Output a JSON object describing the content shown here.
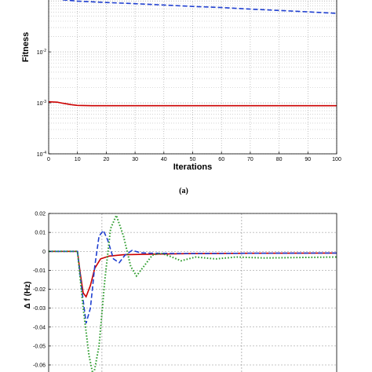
{
  "chart_data": [
    {
      "type": "line",
      "panel_label": "(a)",
      "title": "",
      "xlabel": "Iterations",
      "ylabel": "Fitness",
      "y_scale": "log",
      "xlim": [
        0,
        100
      ],
      "ylim": [
        0.0001,
        0.12
      ],
      "x_ticks": [
        0,
        10,
        20,
        30,
        40,
        50,
        60,
        70,
        80,
        90,
        100
      ],
      "y_ticks": [
        {
          "value": 0.01,
          "base": "10",
          "exp": "-2"
        },
        {
          "value": 0.001,
          "base": "10",
          "exp": "-3"
        },
        {
          "value": 0.0001,
          "base": "10",
          "exp": "-4"
        }
      ],
      "grid": true,
      "series": [
        {
          "style": "dashed",
          "color": "#1f3fd0",
          "points": [
            [
              0,
              0.115
            ],
            [
              5,
              0.105
            ],
            [
              10,
              0.099
            ],
            [
              20,
              0.093
            ],
            [
              30,
              0.088
            ],
            [
              40,
              0.083
            ],
            [
              50,
              0.078
            ],
            [
              60,
              0.074
            ],
            [
              70,
              0.069
            ],
            [
              80,
              0.065
            ],
            [
              90,
              0.061
            ],
            [
              100,
              0.057
            ]
          ]
        },
        {
          "style": "solid",
          "color": "#cc0000",
          "points": [
            [
              0,
              0.00105
            ],
            [
              3,
              0.00103
            ],
            [
              5,
              0.00098
            ],
            [
              8,
              0.00092
            ],
            [
              10,
              0.00089
            ],
            [
              15,
              0.00088
            ],
            [
              30,
              0.00088
            ],
            [
              60,
              0.00088
            ],
            [
              100,
              0.00088
            ]
          ]
        }
      ]
    },
    {
      "type": "line",
      "title": "",
      "xlabel": "",
      "ylabel": "Δ f (Hz)",
      "xlim": [
        0,
        10
      ],
      "ylim": [
        -0.066,
        0.02
      ],
      "y_ticks": [
        0.02,
        0.01,
        0,
        -0.01,
        -0.02,
        -0.03,
        -0.04,
        -0.05,
        -0.06
      ],
      "y_tick_labels": [
        "0.02",
        "0.01",
        "0",
        "-0.01",
        "-0.02",
        "-0.03",
        "-0.04",
        "-0.05",
        "-0.06"
      ],
      "grid": true,
      "series": [
        {
          "style": "solid",
          "color": "#cc0000",
          "points": [
            [
              0,
              0
            ],
            [
              1,
              0
            ],
            [
              1.1,
              -0.012
            ],
            [
              1.2,
              -0.022
            ],
            [
              1.3,
              -0.024
            ],
            [
              1.45,
              -0.018
            ],
            [
              1.6,
              -0.009
            ],
            [
              1.8,
              -0.004
            ],
            [
              2.1,
              -0.0025
            ],
            [
              2.6,
              -0.0018
            ],
            [
              3.5,
              -0.0015
            ],
            [
              5,
              -0.0012
            ],
            [
              7,
              -0.001
            ],
            [
              10,
              -0.0009
            ]
          ]
        },
        {
          "style": "dashed",
          "color": "#1f3fd0",
          "points": [
            [
              0,
              0
            ],
            [
              1,
              0
            ],
            [
              1.15,
              -0.02
            ],
            [
              1.3,
              -0.038
            ],
            [
              1.45,
              -0.03
            ],
            [
              1.6,
              -0.008
            ],
            [
              1.75,
              0.008
            ],
            [
              1.9,
              0.011
            ],
            [
              2.05,
              0.006
            ],
            [
              2.25,
              -0.004
            ],
            [
              2.45,
              -0.006
            ],
            [
              2.65,
              -0.002
            ],
            [
              2.9,
              0.0005
            ],
            [
              3.2,
              -0.0008
            ],
            [
              3.6,
              -0.001
            ],
            [
              5,
              -0.0012
            ],
            [
              7,
              -0.001
            ],
            [
              10,
              -0.0009
            ]
          ]
        },
        {
          "style": "dotted",
          "color": "#2e9d2e",
          "points": [
            [
              0,
              0
            ],
            [
              1,
              0
            ],
            [
              1.2,
              -0.03
            ],
            [
              1.4,
              -0.055
            ],
            [
              1.55,
              -0.066
            ],
            [
              1.75,
              -0.05
            ],
            [
              1.95,
              -0.015
            ],
            [
              2.15,
              0.012
            ],
            [
              2.35,
              0.019
            ],
            [
              2.6,
              0.008
            ],
            [
              2.85,
              -0.008
            ],
            [
              3.05,
              -0.013
            ],
            [
              3.3,
              -0.008
            ],
            [
              3.6,
              -0.002
            ],
            [
              3.9,
              -0.001
            ],
            [
              4.2,
              -0.0025
            ],
            [
              4.6,
              -0.005
            ],
            [
              5.1,
              -0.003
            ],
            [
              5.8,
              -0.004
            ],
            [
              6.5,
              -0.003
            ],
            [
              7.5,
              -0.0035
            ],
            [
              8.5,
              -0.0033
            ],
            [
              10,
              -0.003
            ]
          ]
        }
      ]
    }
  ]
}
